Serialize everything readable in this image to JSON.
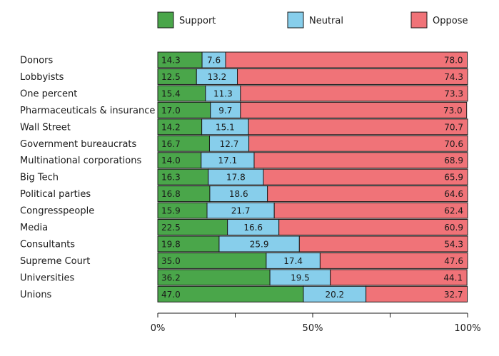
{
  "chart_data": {
    "type": "bar",
    "orientation": "horizontal",
    "stacked": true,
    "categories": [
      "Donors",
      "Lobbyists",
      "One percent",
      "Pharmaceuticals & insurance",
      "Wall Street",
      "Government bureaucrats",
      "Multinational corporations",
      "Big Tech",
      "Political parties",
      "Congresspeople",
      "Media",
      "Consultants",
      "Supreme Court",
      "Universities",
      "Unions"
    ],
    "series": [
      {
        "name": "Support",
        "color": "#4aa64a",
        "values": [
          14.3,
          12.5,
          15.4,
          17.0,
          14.2,
          16.7,
          14.0,
          16.3,
          16.8,
          15.9,
          22.5,
          19.8,
          35.0,
          36.2,
          47.0
        ]
      },
      {
        "name": "Neutral",
        "color": "#87ceeb",
        "values": [
          7.6,
          13.2,
          11.3,
          9.7,
          15.1,
          12.7,
          17.1,
          17.8,
          18.6,
          21.7,
          16.6,
          25.9,
          17.4,
          19.5,
          20.2
        ]
      },
      {
        "name": "Oppose",
        "color": "#f07378",
        "values": [
          78.0,
          74.3,
          73.3,
          73.0,
          70.7,
          70.6,
          68.9,
          65.9,
          64.6,
          62.4,
          60.9,
          54.3,
          47.6,
          44.1,
          32.7
        ]
      }
    ],
    "xlim": [
      0,
      100
    ],
    "x_ticks": [
      "0%",
      "50%",
      "100%"
    ],
    "legend_position": "top",
    "grid": false
  }
}
